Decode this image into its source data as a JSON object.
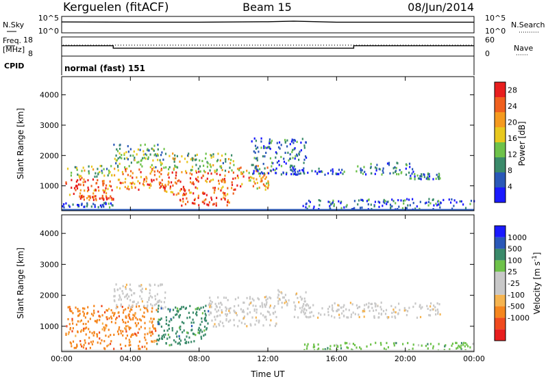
{
  "header": {
    "station": "Kerguelen (fitACF)",
    "beam": "Beam 15",
    "date": "08/Jun/2014"
  },
  "noise_panel": {
    "left_label": "N.Sky",
    "right_label": "N.Search",
    "left_ticks": [
      "10^5",
      "10^0"
    ],
    "right_ticks": [
      "10^5",
      "10^0"
    ]
  },
  "freq_panel": {
    "left_label_1": "Freq.",
    "left_label_2": "[MHz]",
    "right_label": "Nave",
    "left_ticks": [
      "18",
      "8"
    ],
    "right_ticks": [
      "60",
      "0"
    ]
  },
  "cpid_panel": {
    "label": "CPID",
    "mode": "normal (fast) 151"
  },
  "colors": {
    "power_scale": [
      "#1a1aff",
      "#2a58b8",
      "#3a8a6a",
      "#6ec24a",
      "#e8c81e",
      "#f59a1e",
      "#f0601e",
      "#e81e1e"
    ],
    "velocity_scale": [
      "#e81e1e",
      "#f04a1e",
      "#f5861e",
      "#f5b450",
      "#c8c8c8",
      "#c8c8c8",
      "#6ec24a",
      "#3a8a6a",
      "#2a58b8",
      "#1a1aff"
    ]
  },
  "chart_data": [
    {
      "type": "line",
      "name": "noise-sky",
      "x_unit": "hours UT",
      "x": [
        0,
        4,
        8,
        12,
        13.5,
        16,
        20,
        24
      ],
      "y": [
        3000,
        2500,
        2500,
        3500,
        6000,
        2500,
        2500,
        2500
      ],
      "ylim": [
        1,
        100000
      ],
      "yscale": "log"
    },
    {
      "type": "line",
      "name": "transmit-frequency",
      "x_unit": "hours UT",
      "ylabel": "Freq. [MHz]",
      "x": [
        0,
        3,
        3,
        17,
        17,
        24
      ],
      "y": [
        13.5,
        13.5,
        12.0,
        12.0,
        13.5,
        13.5
      ],
      "ylim": [
        8,
        18
      ]
    },
    {
      "type": "heatmap",
      "name": "power",
      "xlabel": "Time UT",
      "ylabel": "Slant Range [km]",
      "colorbar_label": "Power [dB]",
      "colorbar_ticks": [
        4,
        8,
        12,
        16,
        20,
        24,
        28
      ],
      "colorbar_range": [
        0,
        30
      ],
      "xlim": [
        0,
        24
      ],
      "ylim": [
        180,
        4600
      ],
      "x_ticks": [
        "00:00",
        "04:00",
        "08:00",
        "12:00",
        "16:00",
        "20:00",
        "00:00"
      ],
      "y_ticks": [
        1000,
        2000,
        3000,
        4000
      ],
      "regions": [
        {
          "t0": 0.2,
          "t1": 2.9,
          "r0": 700,
          "r1": 1300,
          "value": 24
        },
        {
          "t0": 0.2,
          "t1": 2.9,
          "r0": 1300,
          "r1": 1700,
          "value": 13
        },
        {
          "t0": 1.0,
          "t1": 3.0,
          "r0": 550,
          "r1": 700,
          "value": 25
        },
        {
          "t0": 0.0,
          "t1": 3.0,
          "r0": 320,
          "r1": 480,
          "value": 6
        },
        {
          "t0": 3.0,
          "t1": 6.0,
          "r0": 900,
          "r1": 1600,
          "value": 22
        },
        {
          "t0": 3.0,
          "t1": 6.0,
          "r0": 1600,
          "r1": 2400,
          "value": 12
        },
        {
          "t0": 5.8,
          "t1": 10.2,
          "r0": 700,
          "r1": 1500,
          "value": 24
        },
        {
          "t0": 6.0,
          "t1": 10.0,
          "r0": 1500,
          "r1": 2100,
          "value": 14
        },
        {
          "t0": 6.8,
          "t1": 9.8,
          "r0": 380,
          "r1": 650,
          "value": 27
        },
        {
          "t0": 10.2,
          "t1": 12.2,
          "r0": 900,
          "r1": 1700,
          "value": 20
        },
        {
          "t0": 11.0,
          "t1": 14.2,
          "r0": 1400,
          "r1": 2600,
          "value": 6
        },
        {
          "t0": 12.5,
          "t1": 16.5,
          "r0": 1400,
          "r1": 1600,
          "value": 5
        },
        {
          "t0": 17.0,
          "t1": 20.5,
          "r0": 1400,
          "r1": 1800,
          "value": 8
        },
        {
          "t0": 20.0,
          "t1": 22.0,
          "r0": 1250,
          "r1": 1450,
          "value": 8
        },
        {
          "t0": 14.0,
          "t1": 24.0,
          "r0": 250,
          "r1": 600,
          "value": 6
        }
      ]
    },
    {
      "type": "heatmap",
      "name": "velocity",
      "xlabel": "Time UT",
      "ylabel": "Slant Range [km]",
      "colorbar_label": "Velocity [m s^-1]",
      "colorbar_ticks": [
        1000,
        500,
        100,
        25,
        -25,
        -100,
        -500,
        -1000
      ],
      "xlim": [
        0,
        24
      ],
      "ylim": [
        180,
        4600
      ],
      "x_ticks": [
        "00:00",
        "04:00",
        "08:00",
        "12:00",
        "16:00",
        "20:00",
        "00:00"
      ],
      "y_ticks": [
        1000,
        2000,
        3000,
        4000
      ],
      "regions": [
        {
          "t0": 0.2,
          "t1": 5.5,
          "r0": 300,
          "r1": 1700,
          "value": -150
        },
        {
          "t0": 3.0,
          "t1": 6.0,
          "r0": 1600,
          "r1": 2400,
          "value": 0
        },
        {
          "t0": 5.5,
          "t1": 8.5,
          "r0": 400,
          "r1": 1700,
          "value": 120
        },
        {
          "t0": 8.5,
          "t1": 12.5,
          "r0": 1000,
          "r1": 2000,
          "value": 0
        },
        {
          "t0": 12.5,
          "t1": 14.2,
          "r0": 1600,
          "r1": 2200,
          "value": 0
        },
        {
          "t0": 13.5,
          "t1": 22.0,
          "r0": 1300,
          "r1": 1800,
          "value": 0
        },
        {
          "t0": 14.0,
          "t1": 24.0,
          "r0": 250,
          "r1": 500,
          "value": 80
        }
      ]
    }
  ]
}
